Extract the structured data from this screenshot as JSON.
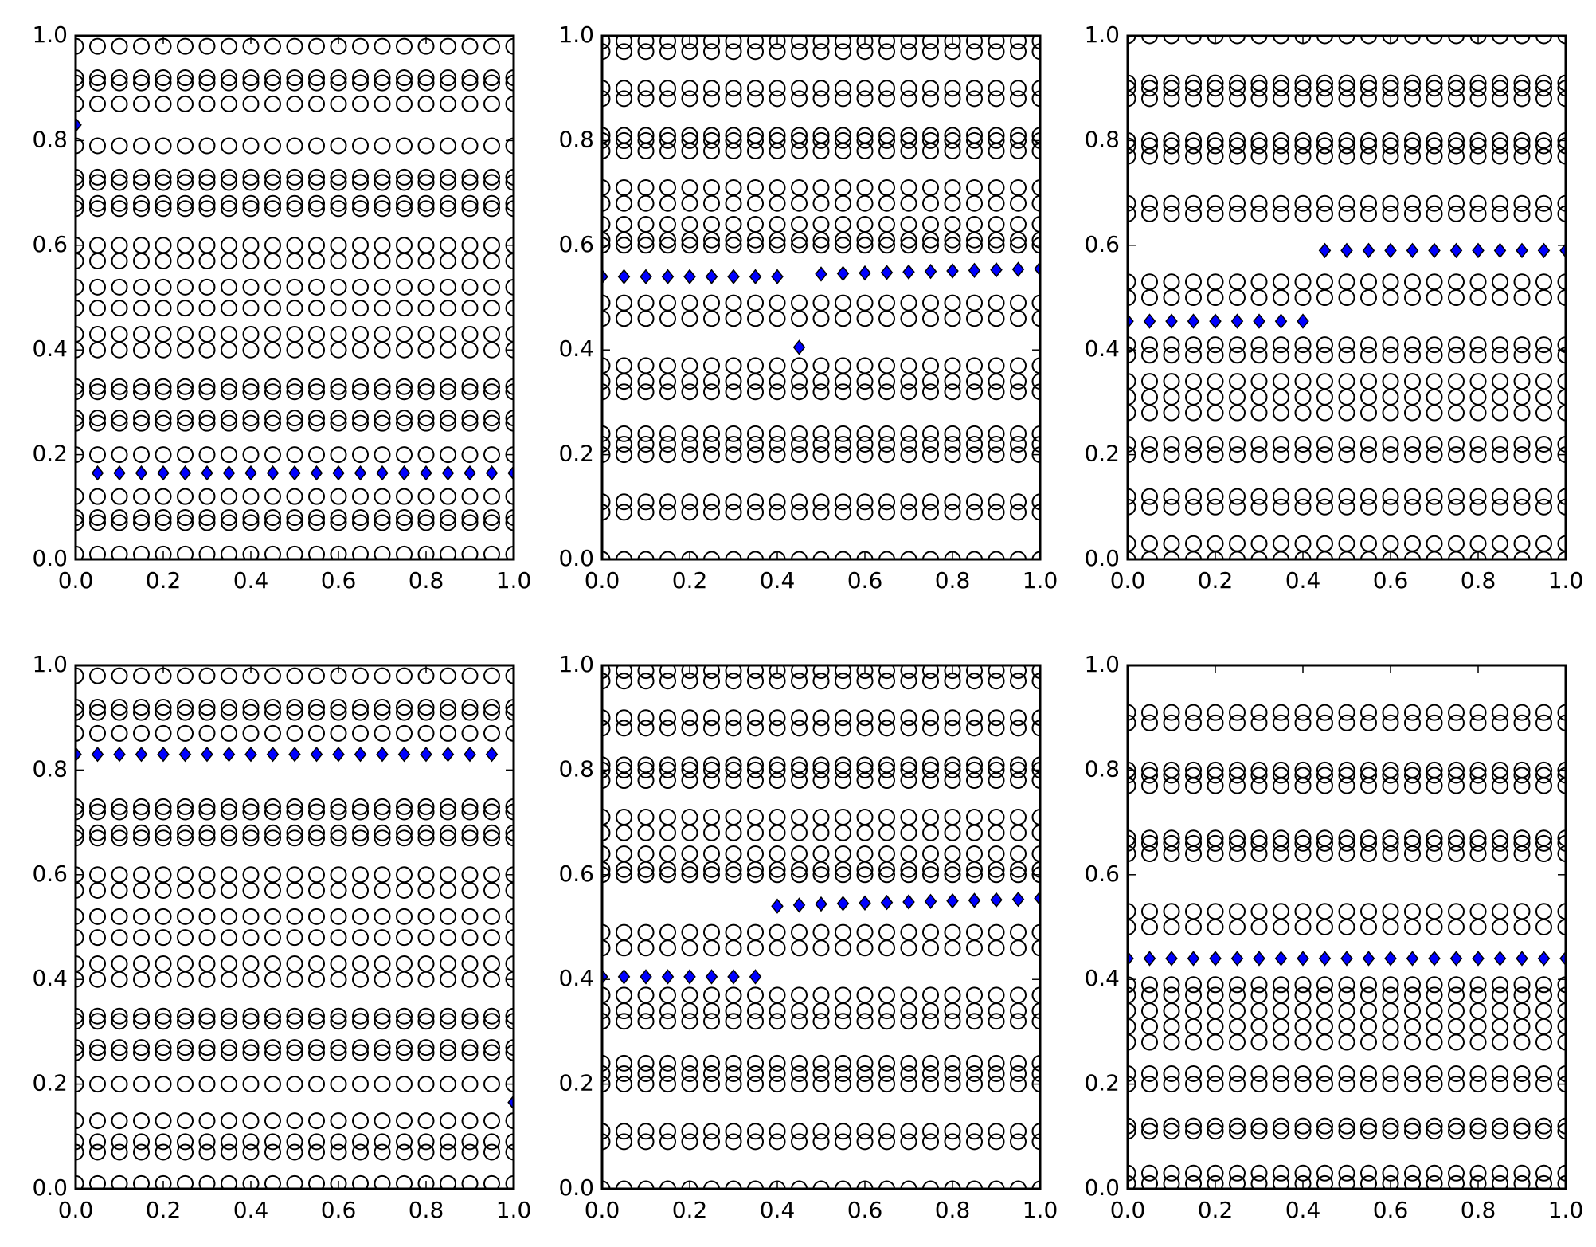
{
  "chart_data": [
    {
      "type": "scatter",
      "x": [
        0,
        0.05,
        0.1,
        0.15,
        0.2,
        0.25,
        0.3,
        0.35,
        0.4,
        0.45,
        0.5,
        0.55,
        0.6,
        0.65,
        0.7,
        0.75,
        0.8,
        0.85,
        0.9,
        0.95,
        1.0
      ],
      "values": [
        0.83,
        0.165,
        0.165,
        0.165,
        0.165,
        0.165,
        0.165,
        0.165,
        0.165,
        0.165,
        0.165,
        0.165,
        0.165,
        0.165,
        0.165,
        0.165,
        0.165,
        0.165,
        0.165,
        0.165,
        0.165
      ],
      "color": "#0000ff",
      "circle_rows": [
        0.98,
        0.92,
        0.91,
        0.87,
        0.79,
        0.73,
        0.72,
        0.68,
        0.67,
        0.6,
        0.57,
        0.52,
        0.48,
        0.43,
        0.4,
        0.33,
        0.32,
        0.27,
        0.26,
        0.2,
        0.12,
        0.08,
        0.07,
        0.01
      ],
      "circle_color": "#000000",
      "xlim": [
        0,
        1
      ],
      "ylim": [
        0,
        1
      ],
      "xticks": [
        {
          "value": 0,
          "label": "0.0"
        },
        0.2,
        0.4,
        0.6,
        0.8,
        {
          "value": 1,
          "label": "1.0"
        }
      ],
      "yticks": [
        {
          "value": 0,
          "label": "0.0"
        },
        0.2,
        0.4,
        0.6,
        0.8,
        {
          "value": 1,
          "label": "1.0"
        }
      ]
    },
    {
      "type": "scatter",
      "x": [
        0,
        0.05,
        0.1,
        0.15,
        0.2,
        0.25,
        0.3,
        0.35,
        0.4,
        0.45,
        0.5,
        0.55,
        0.6,
        0.65,
        0.7,
        0.75,
        0.8,
        0.85,
        0.9,
        0.95,
        1.0
      ],
      "values": [
        0.54,
        0.54,
        0.54,
        0.54,
        0.54,
        0.54,
        0.54,
        0.54,
        0.54,
        0.405,
        0.545,
        0.546,
        0.547,
        0.548,
        0.549,
        0.55,
        0.551,
        0.552,
        0.553,
        0.554,
        0.555
      ],
      "color": "#0000ff",
      "circle_rows": [
        0.99,
        0.97,
        0.9,
        0.88,
        0.81,
        0.8,
        0.78,
        0.71,
        0.68,
        0.64,
        0.61,
        0.6,
        0.49,
        0.46,
        0.37,
        0.34,
        0.32,
        0.24,
        0.22,
        0.2,
        0.11,
        0.09,
        0.0
      ],
      "circle_color": "#000000",
      "xlim": [
        0,
        1
      ],
      "ylim": [
        0,
        1
      ],
      "xticks": [
        {
          "value": 0,
          "label": "0.0"
        },
        0.2,
        0.4,
        0.6,
        0.8,
        {
          "value": 1,
          "label": "1.0"
        }
      ],
      "yticks": [
        {
          "value": 0,
          "label": "0.0"
        },
        0.2,
        0.4,
        0.6,
        0.8,
        {
          "value": 1,
          "label": "1.0"
        }
      ]
    },
    {
      "type": "scatter",
      "x": [
        0,
        0.05,
        0.1,
        0.15,
        0.2,
        0.25,
        0.3,
        0.35,
        0.4,
        0.45,
        0.5,
        0.55,
        0.6,
        0.65,
        0.7,
        0.75,
        0.8,
        0.85,
        0.9,
        0.95,
        1.0
      ],
      "values": [
        0.455,
        0.455,
        0.455,
        0.455,
        0.455,
        0.455,
        0.455,
        0.455,
        0.455,
        0.59,
        0.59,
        0.59,
        0.59,
        0.59,
        0.59,
        0.59,
        0.59,
        0.59,
        0.59,
        0.59,
        0.59
      ],
      "color": "#0000ff",
      "circle_rows": [
        1.0,
        0.91,
        0.9,
        0.88,
        0.8,
        0.79,
        0.77,
        0.68,
        0.66,
        0.53,
        0.5,
        0.41,
        0.39,
        0.34,
        0.31,
        0.28,
        0.22,
        0.2,
        0.12,
        0.1,
        0.03,
        0.0
      ],
      "circle_color": "#000000",
      "xlim": [
        0,
        1
      ],
      "ylim": [
        0,
        1
      ],
      "xticks": [
        {
          "value": 0,
          "label": "0.0"
        },
        0.2,
        0.4,
        0.6,
        0.8,
        {
          "value": 1,
          "label": "1.0"
        }
      ],
      "yticks": [
        {
          "value": 0,
          "label": "0.0"
        },
        0.2,
        0.4,
        0.6,
        0.8,
        {
          "value": 1,
          "label": "1.0"
        }
      ]
    },
    {
      "type": "scatter",
      "x": [
        0,
        0.05,
        0.1,
        0.15,
        0.2,
        0.25,
        0.3,
        0.35,
        0.4,
        0.45,
        0.5,
        0.55,
        0.6,
        0.65,
        0.7,
        0.75,
        0.8,
        0.85,
        0.9,
        0.95,
        1.0
      ],
      "values": [
        0.83,
        0.83,
        0.83,
        0.83,
        0.83,
        0.83,
        0.83,
        0.83,
        0.83,
        0.83,
        0.83,
        0.83,
        0.83,
        0.83,
        0.83,
        0.83,
        0.83,
        0.83,
        0.83,
        0.83,
        0.165
      ],
      "color": "#0000ff",
      "circle_rows": [
        0.98,
        0.92,
        0.91,
        0.87,
        0.73,
        0.72,
        0.68,
        0.67,
        0.6,
        0.57,
        0.52,
        0.48,
        0.43,
        0.4,
        0.33,
        0.32,
        0.27,
        0.26,
        0.2,
        0.13,
        0.09,
        0.07,
        0.01
      ],
      "circle_color": "#000000",
      "xlim": [
        0,
        1
      ],
      "ylim": [
        0,
        1
      ],
      "xticks": [
        {
          "value": 0,
          "label": "0.0"
        },
        0.2,
        0.4,
        0.6,
        0.8,
        {
          "value": 1,
          "label": "1.0"
        }
      ],
      "yticks": [
        {
          "value": 0,
          "label": "0.0"
        },
        0.2,
        0.4,
        0.6,
        0.8,
        {
          "value": 1,
          "label": "1.0"
        }
      ]
    },
    {
      "type": "scatter",
      "x": [
        0,
        0.05,
        0.1,
        0.15,
        0.2,
        0.25,
        0.3,
        0.35,
        0.4,
        0.45,
        0.5,
        0.55,
        0.6,
        0.65,
        0.7,
        0.75,
        0.8,
        0.85,
        0.9,
        0.95,
        1.0
      ],
      "values": [
        0.405,
        0.405,
        0.405,
        0.405,
        0.405,
        0.405,
        0.405,
        0.405,
        0.54,
        0.542,
        0.544,
        0.545,
        0.546,
        0.547,
        0.548,
        0.549,
        0.55,
        0.551,
        0.552,
        0.553,
        0.555
      ],
      "color": "#0000ff",
      "circle_rows": [
        0.99,
        0.97,
        0.9,
        0.88,
        0.81,
        0.8,
        0.78,
        0.71,
        0.68,
        0.64,
        0.61,
        0.6,
        0.49,
        0.46,
        0.37,
        0.34,
        0.32,
        0.24,
        0.22,
        0.2,
        0.11,
        0.09,
        0.0
      ],
      "circle_color": "#000000",
      "xlim": [
        0,
        1
      ],
      "ylim": [
        0,
        1
      ],
      "xticks": [
        {
          "value": 0,
          "label": "0.0"
        },
        0.2,
        0.4,
        0.6,
        0.8,
        {
          "value": 1,
          "label": "1.0"
        }
      ],
      "yticks": [
        {
          "value": 0,
          "label": "0.0"
        },
        0.2,
        0.4,
        0.6,
        0.8,
        {
          "value": 1,
          "label": "1.0"
        }
      ]
    },
    {
      "type": "scatter",
      "x": [
        0,
        0.05,
        0.1,
        0.15,
        0.2,
        0.25,
        0.3,
        0.35,
        0.4,
        0.45,
        0.5,
        0.55,
        0.6,
        0.65,
        0.7,
        0.75,
        0.8,
        0.85,
        0.9,
        0.95,
        1.0
      ],
      "values": [
        0.44,
        0.44,
        0.44,
        0.44,
        0.44,
        0.44,
        0.44,
        0.44,
        0.44,
        0.44,
        0.44,
        0.44,
        0.44,
        0.44,
        0.44,
        0.44,
        0.44,
        0.44,
        0.44,
        0.44,
        0.44
      ],
      "color": "#0000ff",
      "circle_rows": [
        0.91,
        0.89,
        0.8,
        0.79,
        0.77,
        0.67,
        0.66,
        0.64,
        0.53,
        0.5,
        0.39,
        0.37,
        0.34,
        0.31,
        0.28,
        0.22,
        0.2,
        0.12,
        0.11,
        0.03,
        0.01
      ],
      "circle_color": "#000000",
      "xlim": [
        0,
        1
      ],
      "ylim": [
        0,
        1
      ],
      "xticks": [
        {
          "value": 0,
          "label": "0.0"
        },
        0.2,
        0.4,
        0.6,
        0.8,
        {
          "value": 1,
          "label": "1.0"
        }
      ],
      "yticks": [
        {
          "value": 0,
          "label": "0.0"
        },
        0.2,
        0.4,
        0.6,
        0.8,
        {
          "value": 1,
          "label": "1.0"
        }
      ]
    }
  ]
}
